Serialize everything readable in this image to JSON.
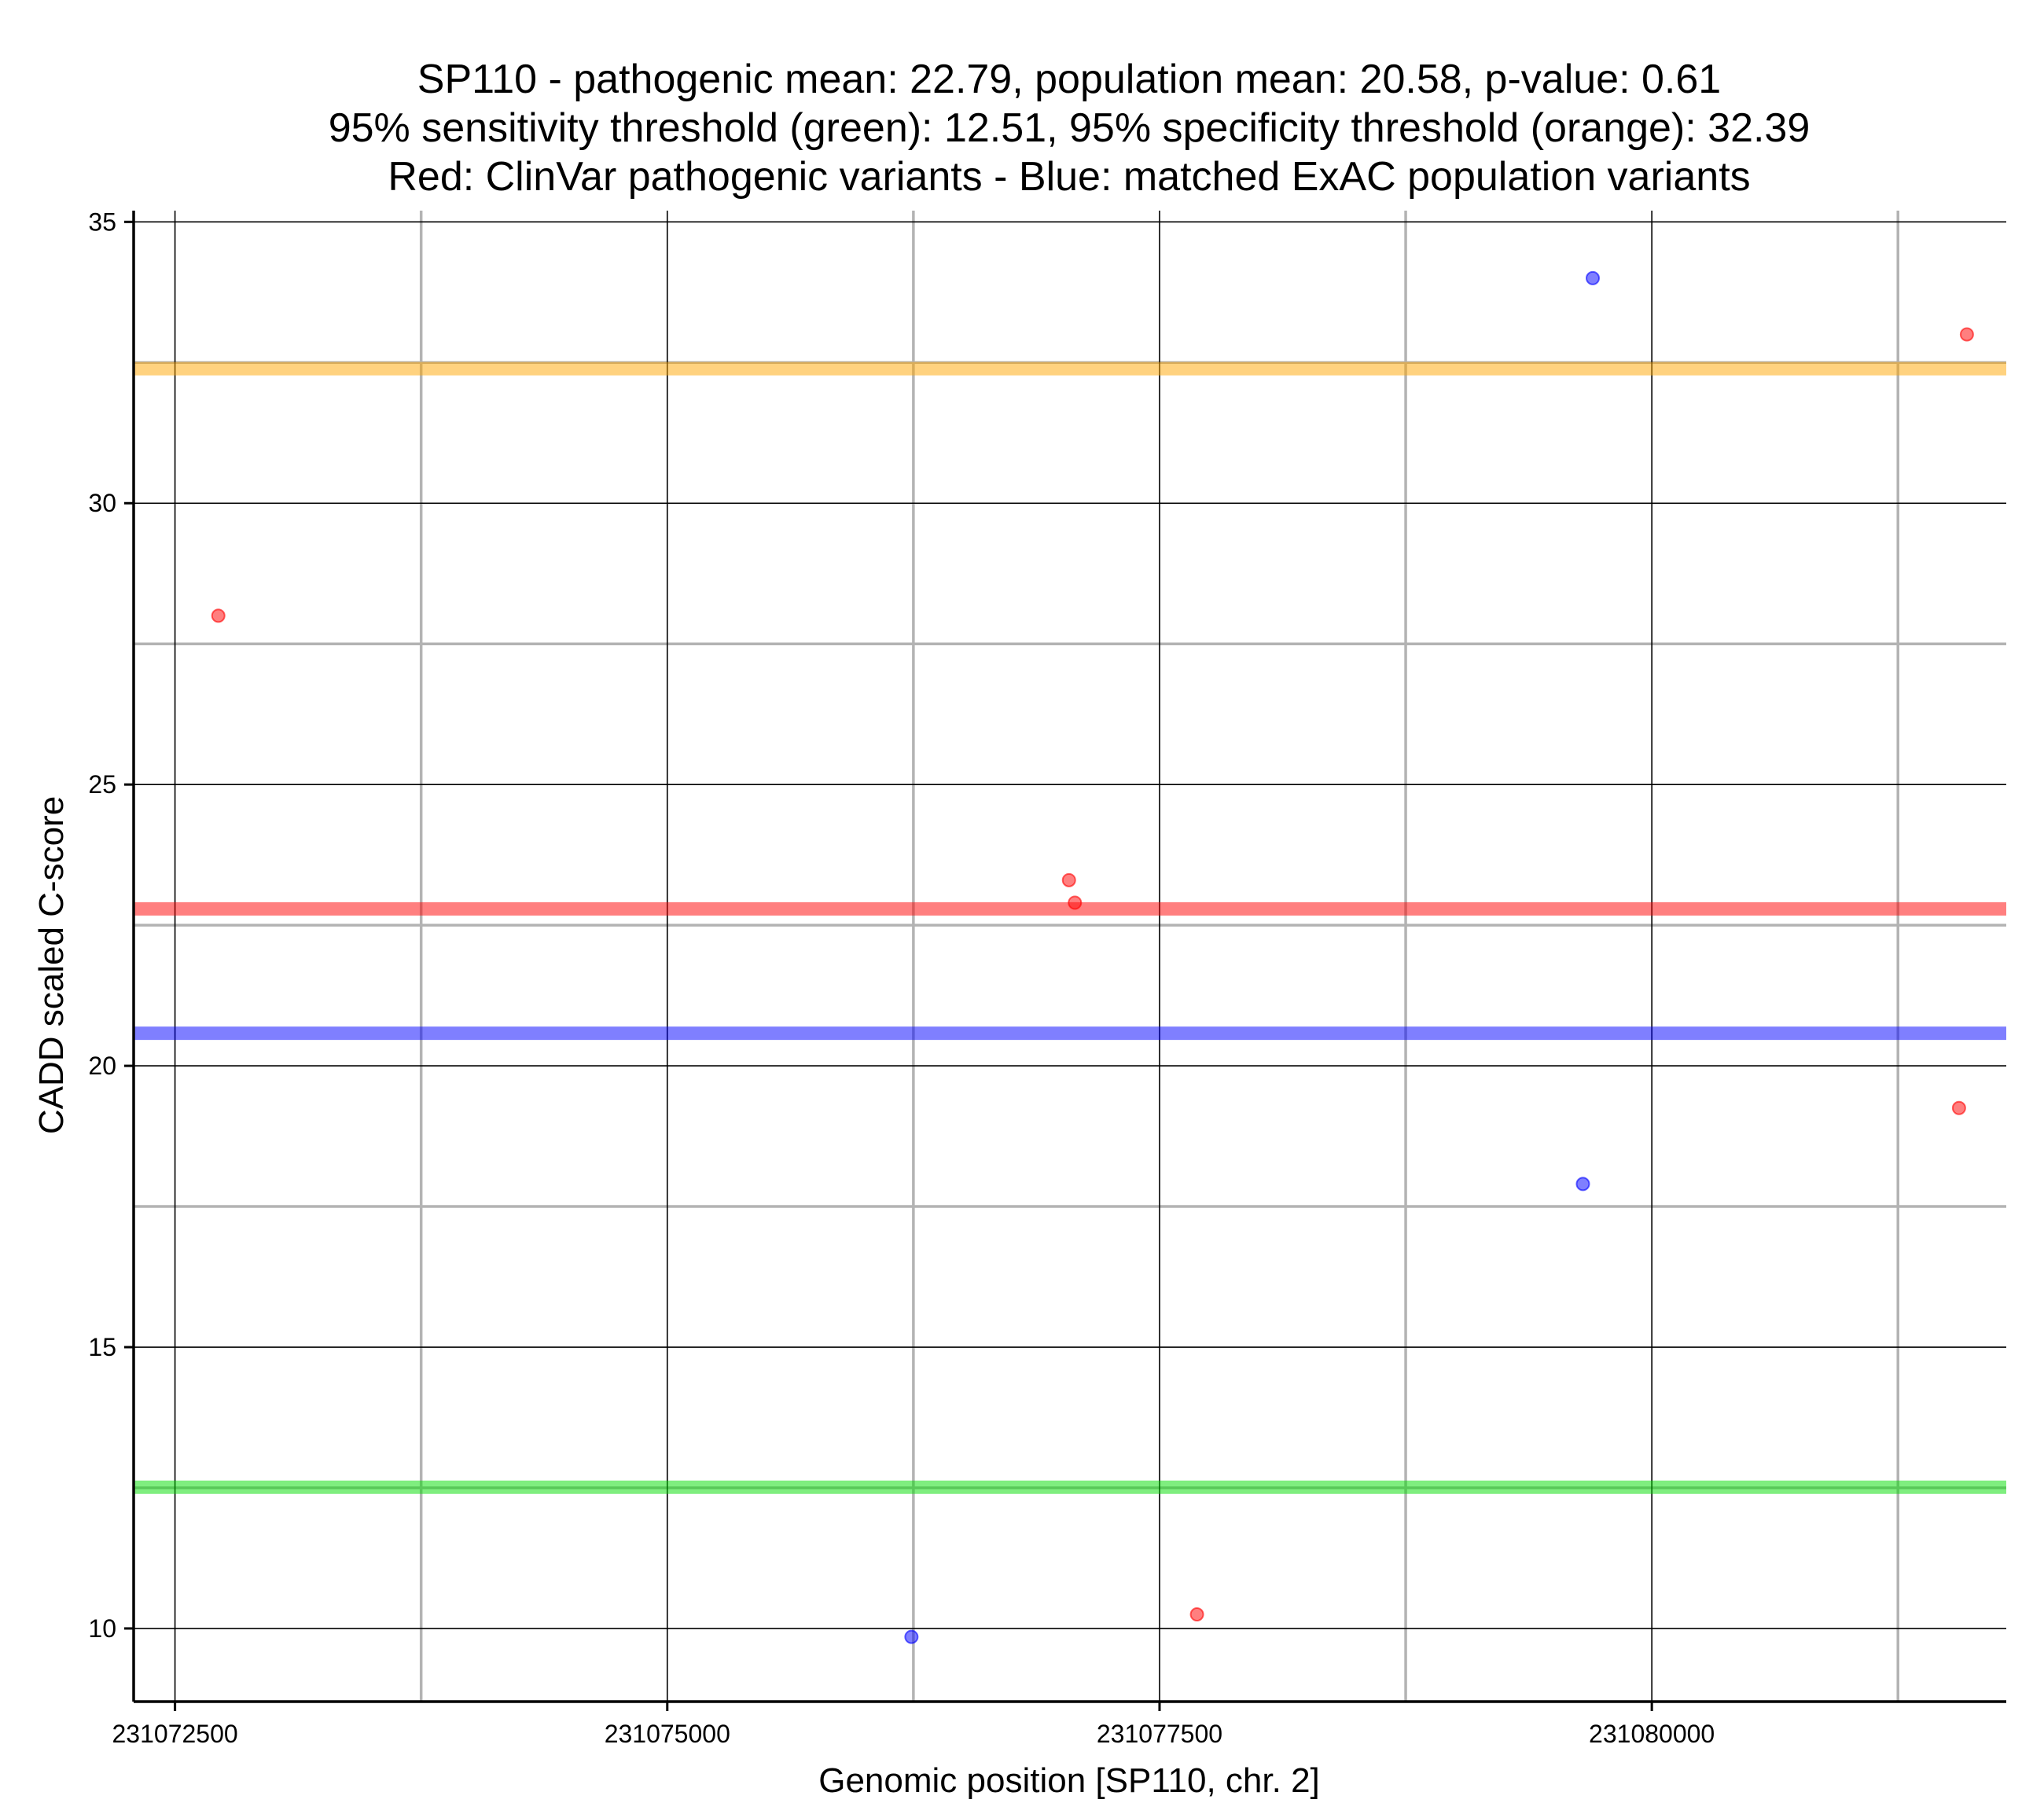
{
  "chart_data": {
    "type": "scatter",
    "title_lines": [
      "SP110 - pathogenic mean: 22.79, population mean: 20.58, p-value: 0.61",
      "95% sensitivity threshold (green): 12.51, 95% specificity threshold (orange): 32.39",
      "Red: ClinVar pathogenic variants - Blue: matched ExAC population variants"
    ],
    "xlabel": "Genomic position [SP110, chr. 2]",
    "ylabel": "CADD scaled C-score",
    "xlim": [
      231072290,
      231081800
    ],
    "ylim": [
      8.7,
      35.2
    ],
    "x_ticks": [
      231072500,
      231075000,
      231077500,
      231080000
    ],
    "x_tick_labels": [
      "231072500",
      "231075000",
      "231077500",
      "231080000"
    ],
    "x_minor_ticks": [
      231073750,
      231076250,
      231078750,
      231081250
    ],
    "y_ticks": [
      10,
      15,
      20,
      25,
      30,
      35
    ],
    "y_tick_labels": [
      "10",
      "15",
      "20",
      "25",
      "30",
      "35"
    ],
    "y_minor_ticks": [
      12.5,
      17.5,
      22.5,
      27.5,
      32.5
    ],
    "grid": true,
    "series": [
      {
        "name": "ClinVar pathogenic variants",
        "color": "#ff0000",
        "points": [
          {
            "x": 231072720,
            "y": 28.0
          },
          {
            "x": 231077040,
            "y": 23.3
          },
          {
            "x": 231077070,
            "y": 22.9
          },
          {
            "x": 231077690,
            "y": 10.25
          },
          {
            "x": 231081560,
            "y": 19.25
          },
          {
            "x": 231081600,
            "y": 33.0
          }
        ]
      },
      {
        "name": "matched ExAC population variants",
        "color": "#0000ff",
        "points": [
          {
            "x": 231076240,
            "y": 9.85
          },
          {
            "x": 231079650,
            "y": 17.9
          },
          {
            "x": 231079700,
            "y": 34.0
          }
        ]
      }
    ],
    "reference_lines": [
      {
        "name": "95% specificity threshold",
        "y": 32.39,
        "color": "#ffa500"
      },
      {
        "name": "pathogenic mean",
        "y": 22.79,
        "color": "#ff0000"
      },
      {
        "name": "population mean",
        "y": 20.58,
        "color": "#0000ff"
      },
      {
        "name": "95% sensitivity threshold",
        "y": 12.51,
        "color": "#00dd00"
      }
    ]
  }
}
